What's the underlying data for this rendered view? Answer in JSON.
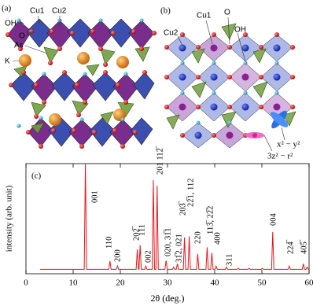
{
  "structure_a": {
    "panel_label": "(a)",
    "OH": "OH",
    "Cu1": "Cu1",
    "Cu2": "Cu2",
    "O": "O",
    "As": "As",
    "K": "K"
  },
  "structure_b": {
    "panel_label": "(b)",
    "Cu2": "Cu2",
    "Cu1": "Cu1",
    "O": "O",
    "OH": "OH",
    "orbital_1": "x² − y²",
    "orbital_2": "3z² − r²"
  },
  "chart_data": {
    "type": "line",
    "panel_label": "(c)",
    "xlabel": "2θ (deg.)",
    "ylabel": "intensity (arb. unit)",
    "color": "#e8141c",
    "xlim": [
      0,
      60
    ],
    "xticks": [
      0,
      10,
      20,
      30,
      40,
      50,
      60
    ],
    "ylim": [
      0,
      100
    ],
    "x": [
      3,
      12.35,
      12.6,
      12.85,
      17.55,
      17.8,
      18.05,
      19.15,
      19.4,
      19.65,
      23.35,
      23.6,
      23.85,
      23.95,
      24.2,
      24.45,
      25.15,
      25.4,
      25.65,
      26.75,
      27.0,
      27.25,
      27.55,
      27.8,
      28.05,
      29.45,
      29.7,
      29.95,
      31.05,
      31.3,
      31.55,
      31.85,
      32.1,
      32.35,
      33.35,
      33.6,
      33.85,
      34.35,
      34.6,
      34.85,
      36.15,
      36.4,
      36.65,
      38.15,
      38.4,
      38.65,
      39.15,
      39.4,
      39.65,
      40.05,
      40.3,
      40.55,
      42.25,
      42.5,
      42.75,
      44.75,
      45.0,
      45.25,
      47.05,
      47.3,
      47.55,
      49.85,
      50.1,
      50.35,
      52.05,
      52.3,
      52.55,
      55.55,
      55.8,
      56.05,
      58.55,
      58.8,
      59.05,
      59.35,
      59.6,
      59.85,
      60
    ],
    "values": [
      4,
      4,
      100,
      4,
      4,
      11.5,
      4,
      4,
      7,
      4,
      4,
      22,
      4,
      4,
      26,
      4,
      4,
      7,
      4,
      4,
      85,
      4,
      4,
      80,
      4,
      4,
      12,
      4,
      4,
      6,
      4,
      4,
      9,
      4,
      4,
      33,
      4,
      4,
      34,
      4,
      4,
      18,
      4,
      4,
      24,
      4,
      4,
      19,
      4,
      4,
      7,
      4,
      4,
      6,
      4,
      4,
      5,
      4,
      4,
      5,
      4,
      4,
      5,
      4,
      4,
      38,
      4,
      4,
      7,
      4,
      4,
      9,
      4,
      4,
      6,
      4,
      4
    ],
    "annotations": [
      "001",
      "110",
      "200",
      "202̅",
      "111",
      "002",
      "201 112̅",
      "020, 31̅1",
      "31̅2, 021",
      "203̅",
      "22̅1, 112",
      "220",
      "113̅, 22̅2",
      "400",
      "311",
      "004",
      "224̅",
      "405̅"
    ]
  }
}
